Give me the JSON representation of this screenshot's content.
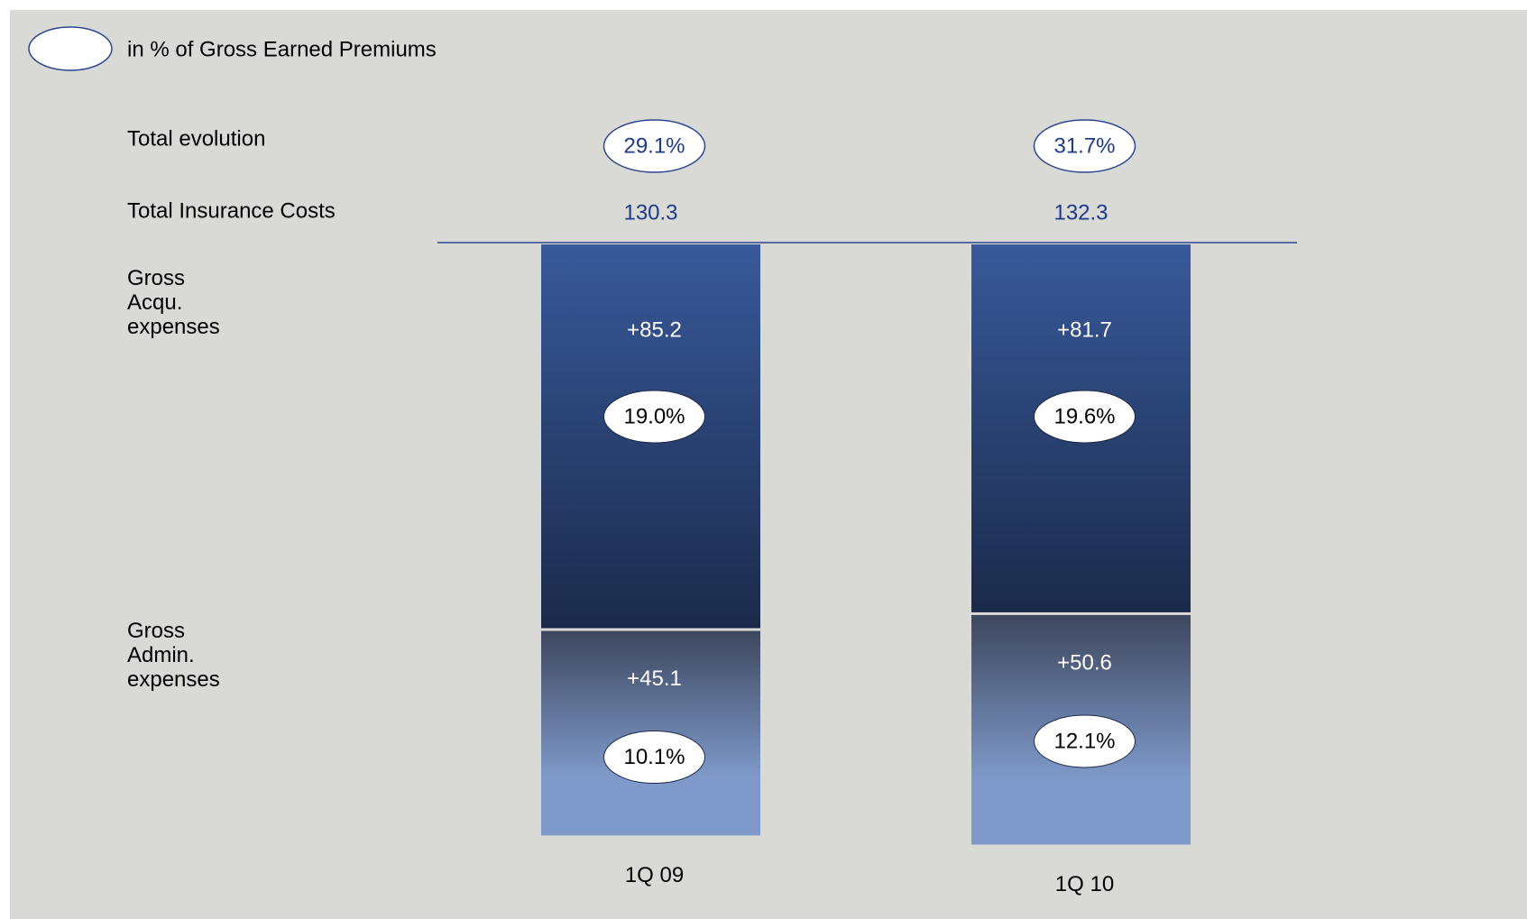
{
  "chart_data": {
    "type": "stacked-bar",
    "legend": "in % of Gross Earned Premiums",
    "row_labels": {
      "evolution": "Total evolution",
      "totals": "Total Insurance Costs"
    },
    "categories": [
      "1Q 09",
      "1Q 10"
    ],
    "totals": [
      130.3,
      132.3
    ],
    "evolution": [
      29.1,
      31.7
    ],
    "evolution_labels": [
      "29.1%",
      "31.7%"
    ],
    "series": [
      {
        "name": "Gross Acqu. expenses",
        "color": "#2d4a84",
        "values": [
          85.2,
          81.7
        ],
        "value_labels": [
          "+85.2",
          "+81.7"
        ],
        "percent_values": [
          19.0,
          19.6
        ],
        "percent_labels": [
          "19.0%",
          "19.6%"
        ]
      },
      {
        "name": "Gross Admin. expenses",
        "color": "#5d6f99",
        "values": [
          45.1,
          50.6
        ],
        "value_labels": [
          "+45.1",
          "+50.6"
        ],
        "percent_values": [
          10.1,
          12.1
        ],
        "percent_labels": [
          "10.1%",
          "12.1%"
        ]
      }
    ]
  }
}
